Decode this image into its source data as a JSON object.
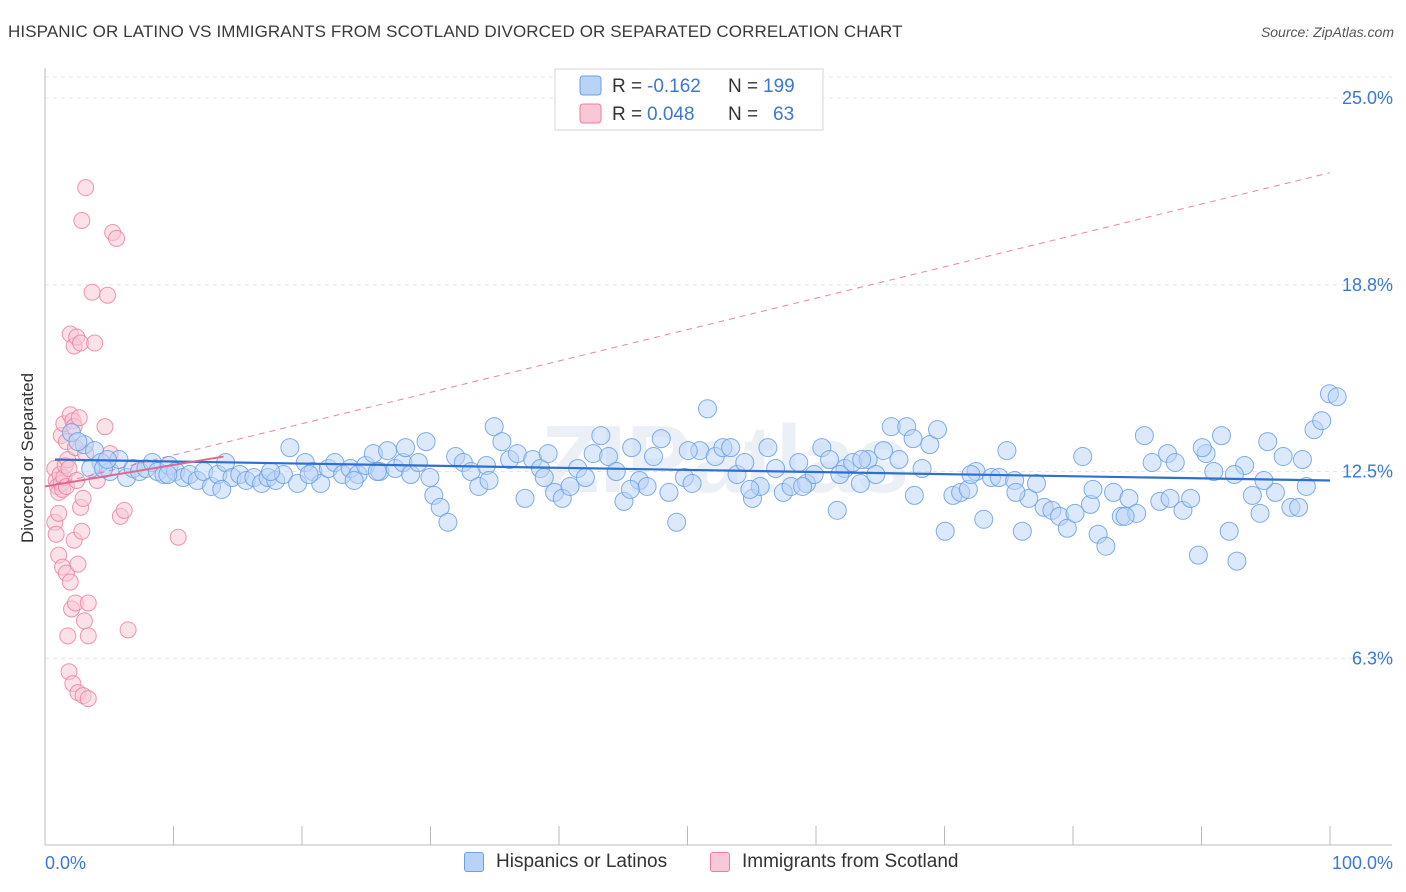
{
  "title": "HISPANIC OR LATINO VS IMMIGRANTS FROM SCOTLAND DIVORCED OR SEPARATED CORRELATION CHART",
  "source": "Source: ZipAtlas.com",
  "colors": {
    "blue": "#6a9fe6",
    "blue_fill": "#b9d3f7",
    "pink": "#ee7c9c",
    "pink_fill": "#f8c8d6",
    "blue_line": "#2f6fcf",
    "pink_line": "#e06790",
    "tick_text": "#3a78d4"
  },
  "legend_top": {
    "rows": [
      {
        "r_label": "R =",
        "r_value": "-0.162",
        "n_label": "N =",
        "n_value": "199"
      },
      {
        "r_label": "R =",
        "r_value": "0.048",
        "n_label": "N =",
        "n_value": "63"
      }
    ]
  },
  "legend_bottom": {
    "series_a": "Hispanics or Latinos",
    "series_b": "Immigrants from Scotland"
  },
  "chart_data": {
    "type": "scatter",
    "ylabel": "Divorced or Separated",
    "x_ticks": [
      "0.0%",
      "100.0%"
    ],
    "y_ticks": [
      "25.0%",
      "18.8%",
      "12.5%",
      "6.3%"
    ],
    "xlim": [
      0,
      100
    ],
    "ylim": [
      0,
      26.5
    ],
    "grid": true,
    "watermark": "ZIPatlas",
    "series": [
      {
        "name": "Hispanics or Latinos",
        "trend": {
          "x": [
            0,
            100
          ],
          "y": [
            12.9,
            12.2
          ]
        },
        "points": [
          [
            0.5,
            13.8
          ],
          [
            1.5,
            13.4
          ],
          [
            2.3,
            13.2
          ],
          [
            2.8,
            12.8
          ],
          [
            3.5,
            12.5
          ],
          [
            4.2,
            12.9
          ],
          [
            4.8,
            12.3
          ],
          [
            5.3,
            12.6
          ],
          [
            5.8,
            12.5
          ],
          [
            6.3,
            12.6
          ],
          [
            6.8,
            12.8
          ],
          [
            7.2,
            12.5
          ],
          [
            7.7,
            12.4
          ],
          [
            8.1,
            12.7
          ],
          [
            8.6,
            12.5
          ],
          [
            9.2,
            12.3
          ],
          [
            9.7,
            12.4
          ],
          [
            10.3,
            12.2
          ],
          [
            10.8,
            12.5
          ],
          [
            11.4,
            12.0
          ],
          [
            11.9,
            12.4
          ],
          [
            12.5,
            12.8
          ],
          [
            13.0,
            12.3
          ],
          [
            13.6,
            12.4
          ],
          [
            14.1,
            12.2
          ],
          [
            14.7,
            12.3
          ],
          [
            15.3,
            12.1
          ],
          [
            15.8,
            12.3
          ],
          [
            16.4,
            12.2
          ],
          [
            17.0,
            12.4
          ],
          [
            17.5,
            13.3
          ],
          [
            18.1,
            12.1
          ],
          [
            18.7,
            12.8
          ],
          [
            19.3,
            12.5
          ],
          [
            19.9,
            12.1
          ],
          [
            20.5,
            12.6
          ],
          [
            21.0,
            12.8
          ],
          [
            21.6,
            12.4
          ],
          [
            22.2,
            12.6
          ],
          [
            22.8,
            12.4
          ],
          [
            23.4,
            12.7
          ],
          [
            24.0,
            13.1
          ],
          [
            24.5,
            12.5
          ],
          [
            25.1,
            13.2
          ],
          [
            25.7,
            12.6
          ],
          [
            26.3,
            12.8
          ],
          [
            26.9,
            12.4
          ],
          [
            27.5,
            12.8
          ],
          [
            28.1,
            13.5
          ],
          [
            28.7,
            11.7
          ],
          [
            29.2,
            11.3
          ],
          [
            29.8,
            10.8
          ],
          [
            30.4,
            13.0
          ],
          [
            31.0,
            12.8
          ],
          [
            31.6,
            12.5
          ],
          [
            32.2,
            12.0
          ],
          [
            32.8,
            12.7
          ],
          [
            33.4,
            14.0
          ],
          [
            34.0,
            13.5
          ],
          [
            34.6,
            12.9
          ],
          [
            35.2,
            13.1
          ],
          [
            35.8,
            11.6
          ],
          [
            36.4,
            12.9
          ],
          [
            37.0,
            12.6
          ],
          [
            37.6,
            13.1
          ],
          [
            38.1,
            11.8
          ],
          [
            38.7,
            11.6
          ],
          [
            39.3,
            12.0
          ],
          [
            39.9,
            12.6
          ],
          [
            40.5,
            12.3
          ],
          [
            41.1,
            13.1
          ],
          [
            41.7,
            13.7
          ],
          [
            42.3,
            13.0
          ],
          [
            42.9,
            12.5
          ],
          [
            43.5,
            11.5
          ],
          [
            44.1,
            13.3
          ],
          [
            44.7,
            12.2
          ],
          [
            45.3,
            12.0
          ],
          [
            45.8,
            13.0
          ],
          [
            46.4,
            13.6
          ],
          [
            47.0,
            11.8
          ],
          [
            47.6,
            10.8
          ],
          [
            48.2,
            12.3
          ],
          [
            48.8,
            12.1
          ],
          [
            49.4,
            13.2
          ],
          [
            50.0,
            14.6
          ],
          [
            50.6,
            13.0
          ],
          [
            51.2,
            13.3
          ],
          [
            51.8,
            13.3
          ],
          [
            52.3,
            12.4
          ],
          [
            52.9,
            12.8
          ],
          [
            53.5,
            11.6
          ],
          [
            54.1,
            12.0
          ],
          [
            54.7,
            13.3
          ],
          [
            55.3,
            12.6
          ],
          [
            55.9,
            11.8
          ],
          [
            56.5,
            12.0
          ],
          [
            57.1,
            12.8
          ],
          [
            57.7,
            12.1
          ],
          [
            58.3,
            12.4
          ],
          [
            58.9,
            13.3
          ],
          [
            59.5,
            12.9
          ],
          [
            60.1,
            11.2
          ],
          [
            60.7,
            12.6
          ],
          [
            61.3,
            12.8
          ],
          [
            61.9,
            12.1
          ],
          [
            62.5,
            12.9
          ],
          [
            63.1,
            12.4
          ],
          [
            63.7,
            13.2
          ],
          [
            64.3,
            14.0
          ],
          [
            64.9,
            12.9
          ],
          [
            65.5,
            14.0
          ],
          [
            66.1,
            11.7
          ],
          [
            66.7,
            12.6
          ],
          [
            67.3,
            13.4
          ],
          [
            67.9,
            13.9
          ],
          [
            68.5,
            10.5
          ],
          [
            69.1,
            11.7
          ],
          [
            69.7,
            11.8
          ],
          [
            70.3,
            11.9
          ],
          [
            70.9,
            12.5
          ],
          [
            71.5,
            10.9
          ],
          [
            72.1,
            12.3
          ],
          [
            72.7,
            12.3
          ],
          [
            73.3,
            13.2
          ],
          [
            73.9,
            12.2
          ],
          [
            74.5,
            10.5
          ],
          [
            75.0,
            11.6
          ],
          [
            75.6,
            12.1
          ],
          [
            76.2,
            11.3
          ],
          [
            76.8,
            11.2
          ],
          [
            77.4,
            11.0
          ],
          [
            78.0,
            10.6
          ],
          [
            78.6,
            11.1
          ],
          [
            79.2,
            13.0
          ],
          [
            79.8,
            11.4
          ],
          [
            80.4,
            10.4
          ],
          [
            81.0,
            10.0
          ],
          [
            81.6,
            11.8
          ],
          [
            82.2,
            11.0
          ],
          [
            82.8,
            11.6
          ],
          [
            83.4,
            11.1
          ],
          [
            84.0,
            13.7
          ],
          [
            84.6,
            12.8
          ],
          [
            85.2,
            11.5
          ],
          [
            85.8,
            13.1
          ],
          [
            86.4,
            12.8
          ],
          [
            87.0,
            11.2
          ],
          [
            87.6,
            11.6
          ],
          [
            88.2,
            9.7
          ],
          [
            88.8,
            13.1
          ],
          [
            89.4,
            12.5
          ],
          [
            90.0,
            13.7
          ],
          [
            90.6,
            10.5
          ],
          [
            91.2,
            9.5
          ],
          [
            91.8,
            12.7
          ],
          [
            92.4,
            11.7
          ],
          [
            93.0,
            11.1
          ],
          [
            93.6,
            13.5
          ],
          [
            94.2,
            11.8
          ],
          [
            94.8,
            13.0
          ],
          [
            95.4,
            11.3
          ],
          [
            96.0,
            11.3
          ],
          [
            96.6,
            12.0
          ],
          [
            97.2,
            13.9
          ],
          [
            97.8,
            14.2
          ],
          [
            98.4,
            15.1
          ],
          [
            99.0,
            15.0
          ],
          [
            1.0,
            13.5
          ],
          [
            2.0,
            12.6
          ],
          [
            3.0,
            12.6
          ],
          [
            8.0,
            12.4
          ],
          [
            12.2,
            11.9
          ],
          [
            16.0,
            12.5
          ],
          [
            19.0,
            12.4
          ],
          [
            33.0,
            12.2
          ],
          [
            48.5,
            13.2
          ],
          [
            53.3,
            11.9
          ],
          [
            57.4,
            12.0
          ],
          [
            62.0,
            12.9
          ],
          [
            66.0,
            13.6
          ],
          [
            70.5,
            12.4
          ],
          [
            74.0,
            11.8
          ],
          [
            80.0,
            11.9
          ],
          [
            82.5,
            11.0
          ],
          [
            86.0,
            11.6
          ],
          [
            88.5,
            13.3
          ],
          [
            91.0,
            12.4
          ],
          [
            93.3,
            12.2
          ],
          [
            96.3,
            12.9
          ],
          [
            60.3,
            12.4
          ],
          [
            44.0,
            11.9
          ],
          [
            37.3,
            12.3
          ],
          [
            22.5,
            12.2
          ],
          [
            3.3,
            12.9
          ],
          [
            24.3,
            12.5
          ],
          [
            26.5,
            13.3
          ],
          [
            28.4,
            12.3
          ]
        ]
      },
      {
        "name": "Immigrants from Scotland",
        "trend": {
          "x": [
            0,
            10
          ],
          "y": [
            12.0,
            13.0
          ]
        },
        "trend_ext": {
          "x": [
            0,
            100
          ],
          "y": [
            12.0,
            22.5
          ]
        },
        "points": [
          [
            0.3,
            12.6
          ],
          [
            0.4,
            12.2
          ],
          [
            0.5,
            12.0
          ],
          [
            0.6,
            11.8
          ],
          [
            0.7,
            12.4
          ],
          [
            0.8,
            12.1
          ],
          [
            0.9,
            11.9
          ],
          [
            1.0,
            12.3
          ],
          [
            1.1,
            12.7
          ],
          [
            1.2,
            12.0
          ],
          [
            0.3,
            10.8
          ],
          [
            0.4,
            10.4
          ],
          [
            0.6,
            11.1
          ],
          [
            0.8,
            13.7
          ],
          [
            1.0,
            14.1
          ],
          [
            1.2,
            13.5
          ],
          [
            1.3,
            12.9
          ],
          [
            1.4,
            12.6
          ],
          [
            1.5,
            14.4
          ],
          [
            1.7,
            14.2
          ],
          [
            1.8,
            14.0
          ],
          [
            1.9,
            13.3
          ],
          [
            2.0,
            12.2
          ],
          [
            2.2,
            14.3
          ],
          [
            2.3,
            11.3
          ],
          [
            2.5,
            11.6
          ],
          [
            2.7,
            13.1
          ],
          [
            0.6,
            9.7
          ],
          [
            0.9,
            9.3
          ],
          [
            1.2,
            9.1
          ],
          [
            1.5,
            8.8
          ],
          [
            1.8,
            10.2
          ],
          [
            2.1,
            9.4
          ],
          [
            2.4,
            10.5
          ],
          [
            1.3,
            7.0
          ],
          [
            1.6,
            7.9
          ],
          [
            1.9,
            8.1
          ],
          [
            2.6,
            7.5
          ],
          [
            2.9,
            7.0
          ],
          [
            1.4,
            5.8
          ],
          [
            1.7,
            5.4
          ],
          [
            2.1,
            5.1
          ],
          [
            2.5,
            5.0
          ],
          [
            2.9,
            4.9
          ],
          [
            1.5,
            17.1
          ],
          [
            1.8,
            16.7
          ],
          [
            2.0,
            17.0
          ],
          [
            2.3,
            16.8
          ],
          [
            3.4,
            16.8
          ],
          [
            2.4,
            20.9
          ],
          [
            2.7,
            22.0
          ],
          [
            3.2,
            18.5
          ],
          [
            4.4,
            18.4
          ],
          [
            4.8,
            20.5
          ],
          [
            5.1,
            20.3
          ],
          [
            4.2,
            14.0
          ],
          [
            5.4,
            11.0
          ],
          [
            5.7,
            11.2
          ],
          [
            6.0,
            7.2
          ],
          [
            9.9,
            10.3
          ],
          [
            2.9,
            8.1
          ],
          [
            3.6,
            12.2
          ],
          [
            4.6,
            13.1
          ]
        ]
      }
    ]
  }
}
